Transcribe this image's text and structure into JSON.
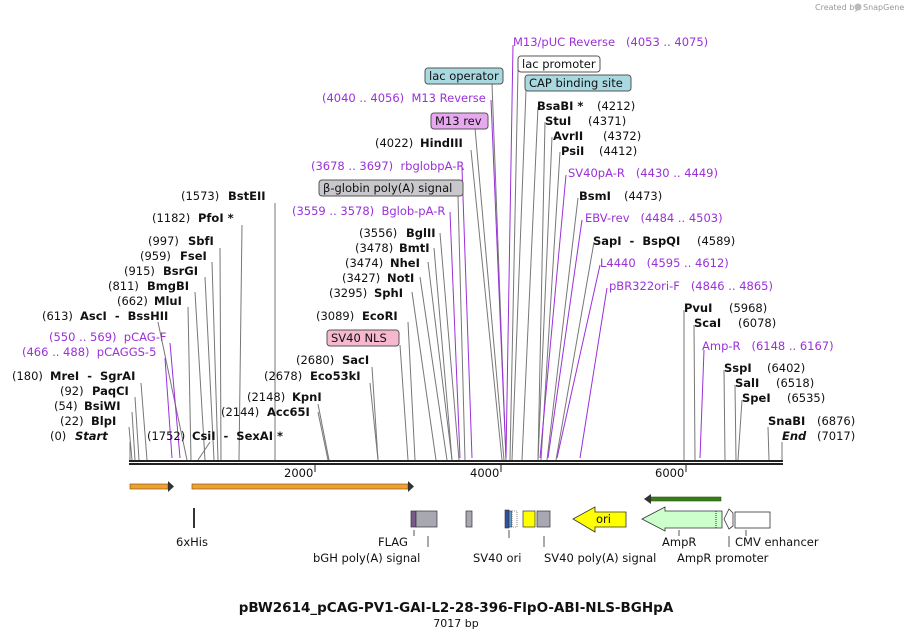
{
  "watermark": {
    "prefix": "Created by",
    "brand": "SnapGene"
  },
  "plasmid": {
    "name": "pBW2614_pCAG-PV1-GAI-L2-28-396-FlpO-ABI-NLS-BGHpA",
    "size_label": "7017 bp"
  },
  "ruler": {
    "ticks": [
      "2000",
      "4000",
      "6000"
    ]
  },
  "sites_left": [
    {
      "num": "(1573)",
      "name": "BstEII"
    },
    {
      "num": "(1182)",
      "name": "PfoI *"
    },
    {
      "num": "(997)",
      "name": "SbfI"
    },
    {
      "num": "(959)",
      "name": "FseI"
    },
    {
      "num": "(915)",
      "name": "BsrGI"
    },
    {
      "num": "(811)",
      "name": "BmgBI"
    },
    {
      "num": "(662)",
      "name": "MluI"
    },
    {
      "num": "(613)",
      "name": "AscI  -  BssHII"
    },
    {
      "num": "(180)",
      "name": "MreI  -  SgrAI"
    },
    {
      "num": "(92)",
      "name": "PaqCI"
    },
    {
      "num": "(54)",
      "name": "BsiWI"
    },
    {
      "num": "(22)",
      "name": "BlpI"
    },
    {
      "num": "(0)",
      "name": "Start"
    }
  ],
  "primers_left": [
    {
      "text": "(550 .. 569)  pCAG-F"
    },
    {
      "text": "(466 .. 488)  pCAGGS-5"
    }
  ],
  "sites_mid": [
    {
      "num": "(1752)",
      "name": "CsiI  -  SexAI *"
    },
    {
      "num": "(2144)",
      "name": "Acc65I"
    },
    {
      "num": "(2148)",
      "name": "KpnI"
    },
    {
      "num": "(2678)",
      "name": "Eco53kI"
    },
    {
      "num": "(2680)",
      "name": "SacI"
    },
    {
      "num": "(3089)",
      "name": "EcoRI"
    },
    {
      "num": "(3295)",
      "name": "SphI"
    },
    {
      "num": "(3427)",
      "name": "NotI"
    },
    {
      "num": "(3474)",
      "name": "NheI"
    },
    {
      "num": "(3478)",
      "name": "BmtI"
    },
    {
      "num": "(3556)",
      "name": "BglII"
    },
    {
      "num": "(4022)",
      "name": "HindIII"
    }
  ],
  "features_boxed": [
    {
      "text": "SV40 NLS"
    },
    {
      "text": "β-globin poly(A) signal"
    },
    {
      "text": "M13 rev"
    },
    {
      "text": "lac operator"
    },
    {
      "text": "lac promoter"
    },
    {
      "text": "CAP binding site"
    }
  ],
  "primers_mid": [
    {
      "text": "(3559 .. 3578)  Bglob-pA-R"
    },
    {
      "text": "(3678 .. 3697)  rbglobpA-R"
    },
    {
      "text": "(4040 .. 4056)  M13 Reverse"
    },
    {
      "text": "M13/pUC Reverse   (4053 .. 4075)"
    }
  ],
  "sites_right": [
    {
      "name": "BsaBI *",
      "num": "(4212)"
    },
    {
      "name": "StuI",
      "num": "(4371)"
    },
    {
      "name": "AvrII",
      "num": "(4372)"
    },
    {
      "name": "PsiI",
      "num": "(4412)"
    },
    {
      "name": "BsmI",
      "num": "(4473)"
    },
    {
      "name": "SapI  -  BspQI",
      "num": "(4589)"
    },
    {
      "name": "PvuI",
      "num": "(5968)"
    },
    {
      "name": "ScaI",
      "num": "(6078)"
    },
    {
      "name": "SspI",
      "num": "(6402)"
    },
    {
      "name": "SalI",
      "num": "(6518)"
    },
    {
      "name": "SpeI",
      "num": "(6535)"
    },
    {
      "name": "SnaBI",
      "num": "(6876)"
    },
    {
      "name": "End",
      "num": "(7017)"
    }
  ],
  "primers_right": [
    {
      "text": "SV40pA-R   (4430 .. 4449)"
    },
    {
      "text": "EBV-rev   (4484 .. 4503)"
    },
    {
      "text": "L4440   (4595 .. 4612)"
    },
    {
      "text": "pBR322ori-F   (4846 .. 4865)"
    },
    {
      "text": "Amp-R   (6148 .. 6167)"
    }
  ],
  "features_bottom": [
    {
      "text": "6xHis"
    },
    {
      "text": "FLAG"
    },
    {
      "text": "bGH poly(A) signal"
    },
    {
      "text": "SV40 ori"
    },
    {
      "text": "SV40 poly(A) signal"
    },
    {
      "text": "AmpR"
    },
    {
      "text": "AmpR promoter"
    },
    {
      "text": "CMV enhancer"
    },
    {
      "text": "ori"
    }
  ],
  "colors": {
    "purple": "#9b30d9",
    "orange": "#f0a030",
    "green": "#3a7d1a",
    "yellow": "#ffff00",
    "ampr": "#ccffcc",
    "gray": "#a8a8b0"
  }
}
